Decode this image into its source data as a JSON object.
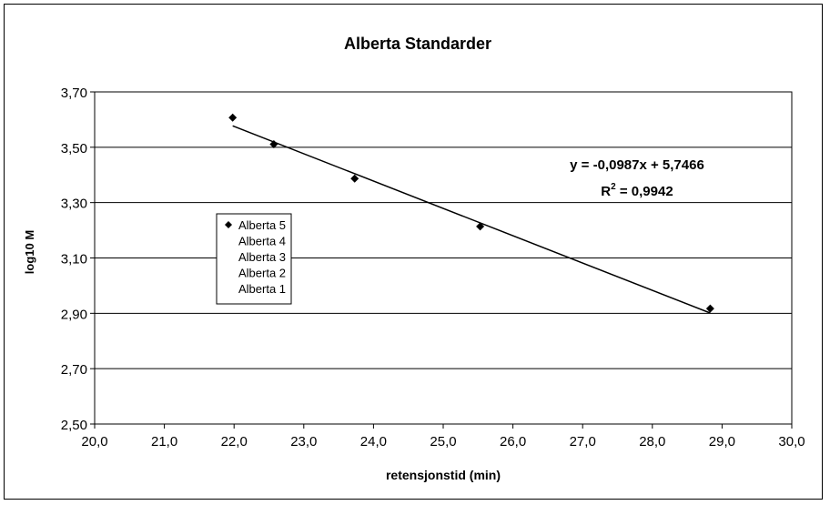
{
  "chart_data": {
    "type": "scatter",
    "title": "Alberta Standarder",
    "xlabel": "retensjonstid (min)",
    "ylabel": "log10 M",
    "xlim": [
      20.0,
      30.0
    ],
    "ylim": [
      2.5,
      3.7
    ],
    "xticks": [
      "20,0",
      "21,0",
      "22,0",
      "23,0",
      "24,0",
      "25,0",
      "26,0",
      "27,0",
      "28,0",
      "29,0",
      "30,0"
    ],
    "yticks": [
      "2,50",
      "2,70",
      "2,90",
      "3,10",
      "3,30",
      "3,50",
      "3,70"
    ],
    "grid": "horizontal",
    "legend_position": "left",
    "legend": [
      "Alberta 5",
      "Alberta 4",
      "Alberta 3",
      "Alberta 2",
      "Alberta 1"
    ],
    "series": [
      {
        "name": "Alberta 5",
        "marker": "diamond",
        "x": [
          21.98
        ],
        "y": [
          3.607
        ]
      },
      {
        "name": "Alberta 4",
        "marker": "diamond",
        "x": [
          22.57
        ],
        "y": [
          3.511
        ]
      },
      {
        "name": "Alberta 3",
        "marker": "diamond",
        "x": [
          23.73
        ],
        "y": [
          3.387
        ]
      },
      {
        "name": "Alberta 2",
        "marker": "diamond",
        "x": [
          25.53
        ],
        "y": [
          3.214
        ]
      },
      {
        "name": "Alberta 1",
        "marker": "diamond",
        "x": [
          28.83
        ],
        "y": [
          2.917
        ]
      }
    ],
    "trendline": {
      "slope": -0.0987,
      "intercept": 5.7466,
      "x_range": [
        21.98,
        28.83
      ],
      "equation": "y = -0,0987x + 5,7466",
      "r2_prefix": "R",
      "r2_exp": "2",
      "r2_value": " = 0,9942"
    },
    "colors": {
      "marker": "#000000",
      "line": "#000000",
      "grid": "#000000",
      "background": "#ffffff"
    }
  }
}
